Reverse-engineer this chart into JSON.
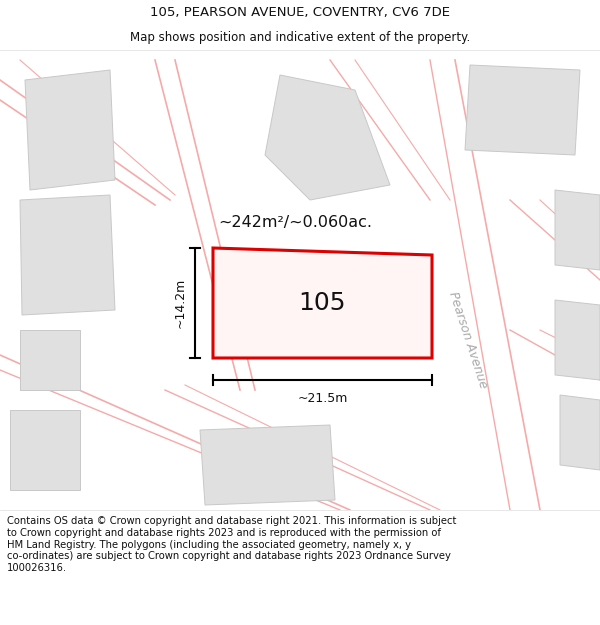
{
  "title": "105, PEARSON AVENUE, COVENTRY, CV6 7DE",
  "subtitle": "Map shows position and indicative extent of the property.",
  "footer": "Contains OS data © Crown copyright and database right 2021. This information is subject\nto Crown copyright and database rights 2023 and is reproduced with the permission of\nHM Land Registry. The polygons (including the associated geometry, namely x, y\nco-ordinates) are subject to Crown copyright and database rights 2023 Ordnance Survey\n100026316.",
  "bg_color": "#ffffff",
  "map_bg": "#f5f5f5",
  "area_text": "~242m²/~0.060ac.",
  "property_label": "105",
  "dim_width": "~21.5m",
  "dim_height": "~14.2m",
  "street_label": "Pearson Avenue",
  "title_fontsize": 9.5,
  "subtitle_fontsize": 8.5,
  "footer_fontsize": 7.2,
  "pink": "#f5aaaa",
  "gray_fill": "#e0e0e0",
  "gray_edge": "#c8c8c8",
  "road_fill": "#efefef",
  "road_edge": "#d0d0d0"
}
